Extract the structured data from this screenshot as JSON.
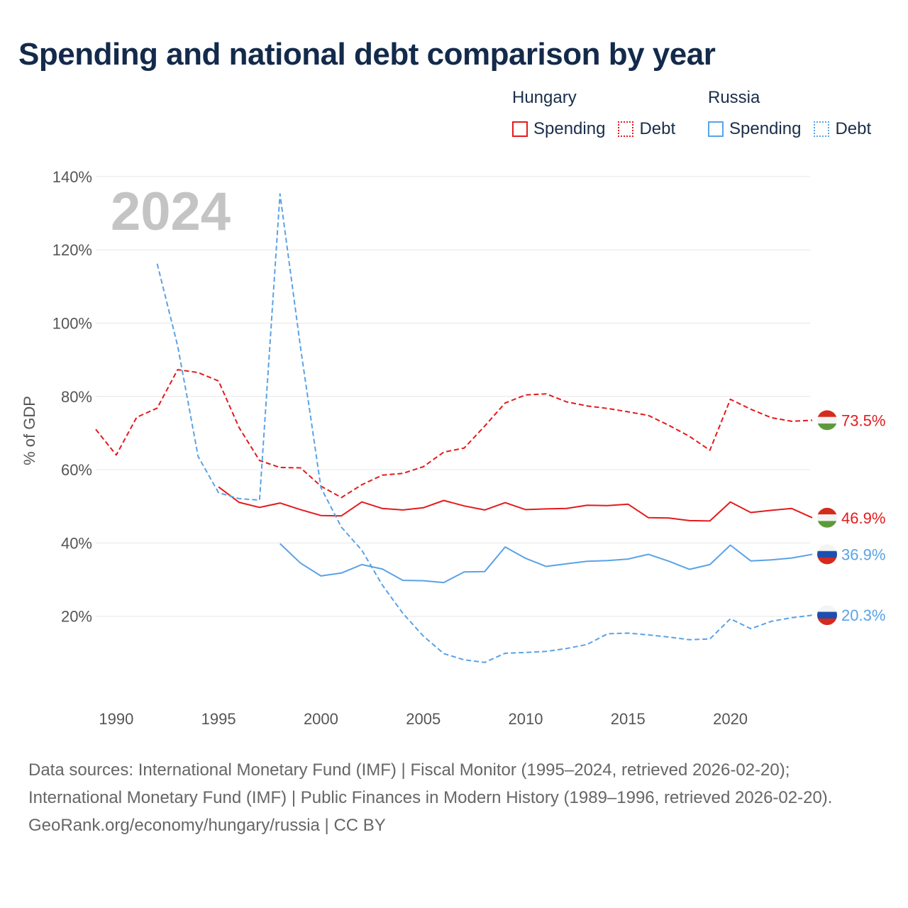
{
  "title": "Spending and national debt comparison by year",
  "legend": {
    "hungary": {
      "name": "Hungary",
      "spending": "Spending",
      "debt": "Debt"
    },
    "russia": {
      "name": "Russia",
      "spending": "Spending",
      "debt": "Debt"
    }
  },
  "year_watermark": "2024",
  "footer": {
    "sources": "Data sources: International Monetary Fund (IMF) | Fiscal Monitor (1995–2024, retrieved 2026-02-20); International Monetary Fund (IMF) | Public Finances in Modern History (1989–1996, retrieved 2026-02-20).",
    "credit": "GeoRank.org/economy/hungary/russia | CC BY"
  },
  "colors": {
    "hungary": "#e41a1c",
    "russia": "#5aa2e6",
    "grid": "#e6e6e6",
    "axis_text": "#555555"
  },
  "chart_data": {
    "type": "line",
    "ylabel": "% of GDP",
    "ylim": [
      0,
      140
    ],
    "yticks": [
      20,
      40,
      60,
      80,
      100,
      120,
      140
    ],
    "ytick_labels": [
      "20%",
      "40%",
      "60%",
      "80%",
      "100%",
      "120%",
      "140%"
    ],
    "xlim": [
      1989,
      2024
    ],
    "xticks": [
      1990,
      1995,
      2000,
      2005,
      2010,
      2015,
      2020
    ],
    "grid": true,
    "series": [
      {
        "name": "Hungary Debt",
        "country": "hungary",
        "style": "dashed",
        "end_label": "73.5%",
        "points": [
          [
            1989,
            71
          ],
          [
            1990,
            64
          ],
          [
            1991,
            74.3
          ],
          [
            1992,
            76.8
          ],
          [
            1993,
            87.3
          ],
          [
            1994,
            86.5
          ],
          [
            1995,
            84.2
          ],
          [
            1996,
            71.5
          ],
          [
            1997,
            62.5
          ],
          [
            1998,
            60.6
          ],
          [
            1999,
            60.5
          ],
          [
            2000,
            55.5
          ],
          [
            2001,
            52.4
          ],
          [
            2002,
            55.9
          ],
          [
            2003,
            58.5
          ],
          [
            2004,
            59
          ],
          [
            2005,
            60.8
          ],
          [
            2006,
            64.8
          ],
          [
            2007,
            65.9
          ],
          [
            2008,
            71.9
          ],
          [
            2009,
            78.2
          ],
          [
            2010,
            80.4
          ],
          [
            2011,
            80.7
          ],
          [
            2012,
            78.5
          ],
          [
            2013,
            77.4
          ],
          [
            2014,
            76.7
          ],
          [
            2015,
            75.8
          ],
          [
            2016,
            74.8
          ],
          [
            2017,
            72.1
          ],
          [
            2018,
            69.1
          ],
          [
            2019,
            65.3
          ],
          [
            2020,
            79.2
          ],
          [
            2021,
            76.5
          ],
          [
            2022,
            74.2
          ],
          [
            2023,
            73.2
          ],
          [
            2024,
            73.5
          ]
        ]
      },
      {
        "name": "Hungary Spending",
        "country": "hungary",
        "style": "solid",
        "end_label": "46.9%",
        "points": [
          [
            1995,
            55.3
          ],
          [
            1996,
            51.1
          ],
          [
            1997,
            49.7
          ],
          [
            1998,
            50.9
          ],
          [
            1999,
            49.1
          ],
          [
            2000,
            47.5
          ],
          [
            2001,
            47.4
          ],
          [
            2002,
            51.2
          ],
          [
            2003,
            49.4
          ],
          [
            2004,
            49
          ],
          [
            2005,
            49.6
          ],
          [
            2006,
            51.6
          ],
          [
            2007,
            50.1
          ],
          [
            2008,
            49
          ],
          [
            2009,
            51
          ],
          [
            2010,
            49.1
          ],
          [
            2011,
            49.3
          ],
          [
            2012,
            49.4
          ],
          [
            2013,
            50.3
          ],
          [
            2014,
            50.2
          ],
          [
            2015,
            50.6
          ],
          [
            2016,
            46.9
          ],
          [
            2017,
            46.8
          ],
          [
            2018,
            46.1
          ],
          [
            2019,
            46
          ],
          [
            2020,
            51.2
          ],
          [
            2021,
            48.3
          ],
          [
            2022,
            48.9
          ],
          [
            2023,
            49.4
          ],
          [
            2024,
            46.9
          ]
        ]
      },
      {
        "name": "Russia Spending",
        "country": "russia",
        "style": "solid",
        "end_label": "36.9%",
        "points": [
          [
            1998,
            39.8
          ],
          [
            1999,
            34.5
          ],
          [
            2000,
            31
          ],
          [
            2001,
            31.8
          ],
          [
            2002,
            34.1
          ],
          [
            2003,
            32.9
          ],
          [
            2004,
            29.8
          ],
          [
            2005,
            29.7
          ],
          [
            2006,
            29.2
          ],
          [
            2007,
            32.1
          ],
          [
            2008,
            32.2
          ],
          [
            2009,
            38.9
          ],
          [
            2010,
            35.8
          ],
          [
            2011,
            33.6
          ],
          [
            2012,
            34.3
          ],
          [
            2013,
            35
          ],
          [
            2014,
            35.2
          ],
          [
            2015,
            35.6
          ],
          [
            2016,
            36.9
          ],
          [
            2017,
            35
          ],
          [
            2018,
            32.8
          ],
          [
            2019,
            34.1
          ],
          [
            2020,
            39.4
          ],
          [
            2021,
            35.1
          ],
          [
            2022,
            35.4
          ],
          [
            2023,
            35.9
          ],
          [
            2024,
            36.9
          ]
        ]
      },
      {
        "name": "Russia Debt",
        "country": "russia",
        "style": "dashed",
        "end_label": "20.3%",
        "points": [
          [
            1992,
            116.2
          ],
          [
            1993,
            93.8
          ],
          [
            1994,
            63.6
          ],
          [
            1995,
            53.7
          ],
          [
            1996,
            52.1
          ],
          [
            1997,
            51.7
          ],
          [
            1998,
            135.3
          ],
          [
            1999,
            93.4
          ],
          [
            2000,
            55.1
          ],
          [
            2001,
            44.3
          ],
          [
            2002,
            38
          ],
          [
            2003,
            28.5
          ],
          [
            2004,
            20.8
          ],
          [
            2005,
            14.6
          ],
          [
            2006,
            9.8
          ],
          [
            2007,
            8.1
          ],
          [
            2008,
            7.4
          ],
          [
            2009,
            9.9
          ],
          [
            2010,
            10.1
          ],
          [
            2011,
            10.4
          ],
          [
            2012,
            11.2
          ],
          [
            2013,
            12.3
          ],
          [
            2014,
            15.2
          ],
          [
            2015,
            15.4
          ],
          [
            2016,
            14.9
          ],
          [
            2017,
            14.3
          ],
          [
            2018,
            13.6
          ],
          [
            2019,
            13.8
          ],
          [
            2020,
            19.3
          ],
          [
            2021,
            16.6
          ],
          [
            2022,
            18.6
          ],
          [
            2023,
            19.6
          ],
          [
            2024,
            20.3
          ]
        ]
      }
    ]
  }
}
